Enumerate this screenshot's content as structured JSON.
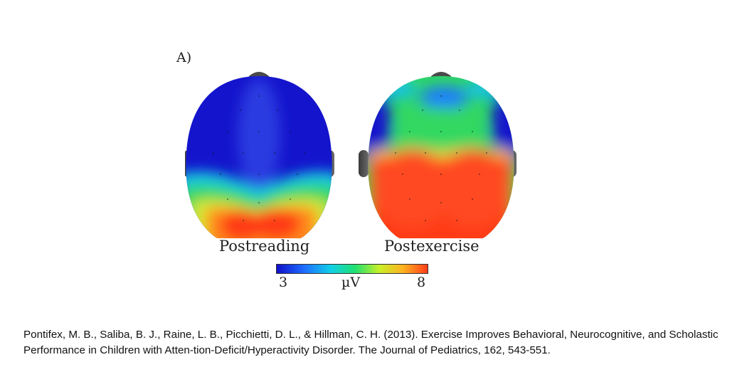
{
  "panel_label": "A)",
  "maps": [
    {
      "caption": "Postreading"
    },
    {
      "caption": "Postexercise"
    }
  ],
  "colorbar": {
    "min_label": "3",
    "unit_label": "µV",
    "max_label": "8",
    "colors": [
      "#1010c8",
      "#1e6cff",
      "#10d0e8",
      "#20e070",
      "#c8f028",
      "#ffb020",
      "#ff3c1a"
    ]
  },
  "citation": {
    "line1": "Pontifex, M. B., Saliba, B. J., Raine, L. B., Picchietti, D. L., & Hillman, C. H. (2013). Exercise Improves Behavioral, Neurocognitive, and Scholastic",
    "line2": "Performance in Children with Atten-tion-Deficit/Hyperactivity Disorder. The Journal of Pediatrics, 162, 543-551."
  }
}
